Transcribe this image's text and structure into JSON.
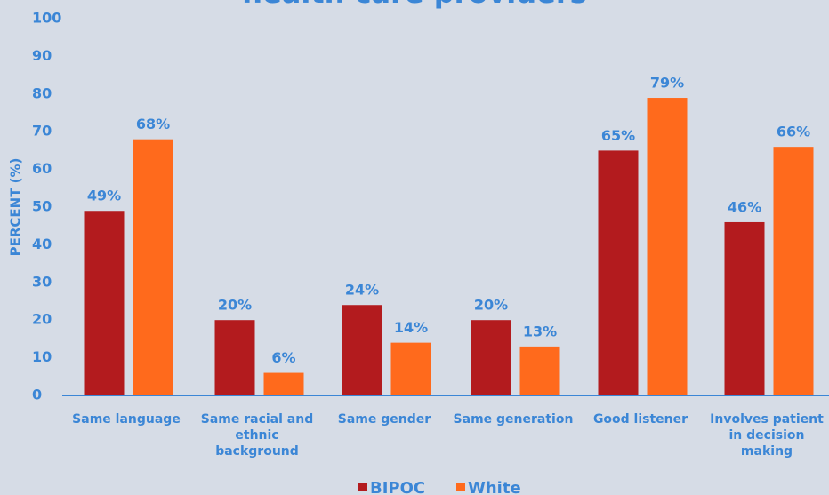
{
  "chart_data": {
    "type": "bar",
    "title": "health care providers",
    "ylabel": "PERCENT (%)",
    "categories": [
      "Same language",
      "Same racial and ethnic background",
      "Same gender",
      "Same generation",
      "Good listener",
      "Involves patient in decision making"
    ],
    "series": [
      {
        "name": "BIPOC",
        "color": "#b31b1e",
        "values": [
          49,
          20,
          24,
          20,
          65,
          46
        ],
        "value_labels": [
          "49%",
          "20%",
          "24%",
          "20%",
          "65%",
          "46%"
        ]
      },
      {
        "name": "White",
        "color": "#ff6a1c",
        "values": [
          68,
          6,
          14,
          13,
          79,
          66
        ],
        "value_labels": [
          "68%",
          "6%",
          "14%",
          "13%",
          "79%",
          "66%"
        ]
      }
    ],
    "ylim": [
      0,
      100
    ],
    "yticks": [
      0,
      10,
      20,
      30,
      40,
      50,
      60,
      70,
      80,
      90,
      100
    ],
    "grid": false,
    "legend": "bottom"
  }
}
